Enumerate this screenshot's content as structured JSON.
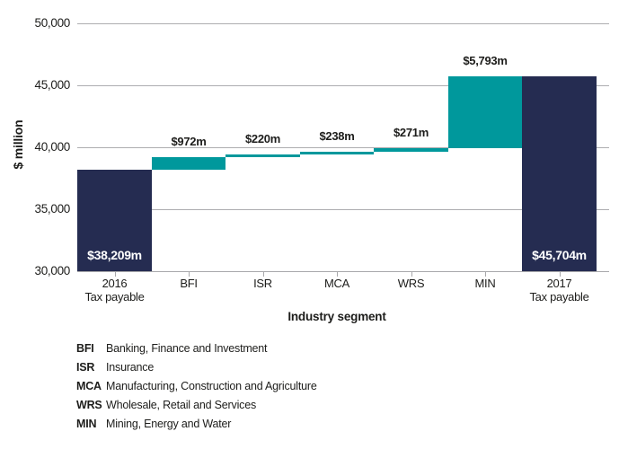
{
  "chart_data": {
    "type": "bar",
    "subtype": "waterfall",
    "title": "",
    "ylabel": "$ million",
    "xlabel": "Industry segment",
    "ylim": [
      30000,
      50000
    ],
    "ytick_interval": 5000,
    "grid": "horizontal",
    "legend_position": "bottom",
    "yticks": [
      {
        "value": 50000,
        "label": "50,000"
      },
      {
        "value": 45000,
        "label": "45,000"
      },
      {
        "value": 40000,
        "label": "40,000"
      },
      {
        "value": 35000,
        "label": "35,000"
      },
      {
        "value": 30000,
        "label": "30,000"
      }
    ],
    "bars": [
      {
        "label_lines": [
          "2016",
          "Tax payable"
        ],
        "role": "total",
        "base": 30000,
        "top": 38209,
        "delta": 38209,
        "value_label": "$38,209m",
        "label_placement": "inside-bottom"
      },
      {
        "label_lines": [
          "BFI"
        ],
        "role": "delta",
        "base": 38209,
        "top": 39181,
        "delta": 972,
        "value_label": "$972m",
        "label_placement": "above"
      },
      {
        "label_lines": [
          "ISR"
        ],
        "role": "delta",
        "base": 39181,
        "top": 39401,
        "delta": 220,
        "value_label": "$220m",
        "label_placement": "above"
      },
      {
        "label_lines": [
          "MCA"
        ],
        "role": "delta",
        "base": 39401,
        "top": 39639,
        "delta": 238,
        "value_label": "$238m",
        "label_placement": "above"
      },
      {
        "label_lines": [
          "WRS"
        ],
        "role": "delta",
        "base": 39639,
        "top": 39910,
        "delta": 271,
        "value_label": "$271m",
        "label_placement": "above"
      },
      {
        "label_lines": [
          "MIN"
        ],
        "role": "delta",
        "base": 39910,
        "top": 45703,
        "delta": 5793,
        "value_label": "$5,793m",
        "label_placement": "above"
      },
      {
        "label_lines": [
          "2017",
          "Tax payable"
        ],
        "role": "total",
        "base": 30000,
        "top": 45704,
        "delta": 45704,
        "value_label": "$45,704m",
        "label_placement": "inside-bottom"
      }
    ],
    "colors": {
      "total": "#252C51",
      "delta": "#00989C",
      "gridline": "#ADADB0",
      "axis": "#A8A8AB",
      "tick": "#A8A8AB",
      "text": "#1D1D1B",
      "inside_label": "#FFFFFF"
    },
    "legend": [
      {
        "abbr": "BFI",
        "description": "Banking, Finance and Investment"
      },
      {
        "abbr": "ISR",
        "description": "Insurance"
      },
      {
        "abbr": "MCA",
        "description": "Manufacturing, Construction and Agriculture"
      },
      {
        "abbr": "WRS",
        "description": "Wholesale, Retail and Services"
      },
      {
        "abbr": "MIN",
        "description": "Mining, Energy and Water"
      }
    ]
  }
}
